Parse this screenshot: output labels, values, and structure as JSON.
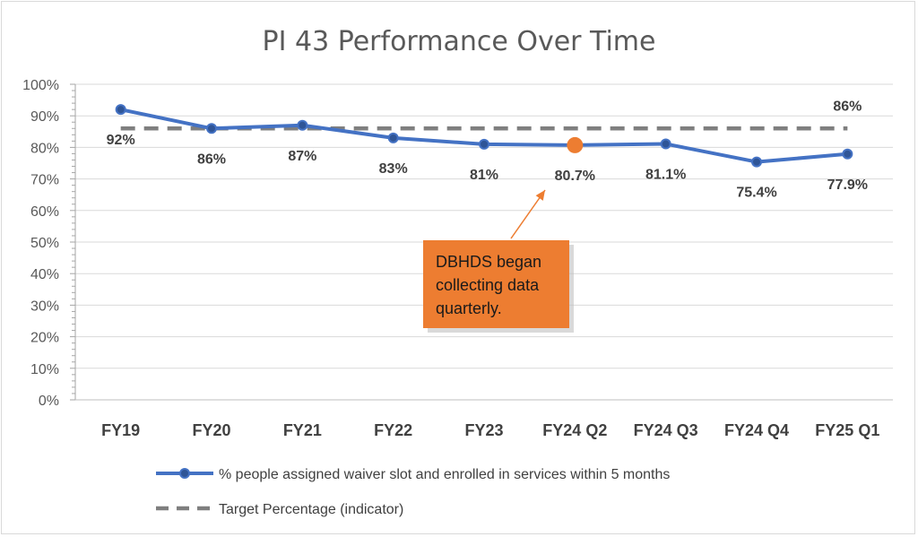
{
  "chart_data": {
    "type": "line",
    "title": "PI 43 Performance Over Time",
    "categories": [
      "FY19",
      "FY20",
      "FY21",
      "FY22",
      "FY23",
      "FY24 Q2",
      "FY24 Q3",
      "FY24 Q4",
      "FY25 Q1"
    ],
    "yticks": [
      "0%",
      "10%",
      "20%",
      "30%",
      "40%",
      "50%",
      "60%",
      "70%",
      "80%",
      "90%",
      "100%"
    ],
    "ylim": [
      0,
      100
    ],
    "grid": true,
    "legend_position": "bottom",
    "series": [
      {
        "name": "% people assigned waiver slot and enrolled in services within 5 months",
        "values": [
          92,
          86,
          87,
          83,
          81,
          80.7,
          81.1,
          75.4,
          77.9
        ],
        "labels": [
          "92%",
          "86%",
          "87%",
          "83%",
          "81%",
          "80.7%",
          "81.1%",
          "75.4%",
          "77.9%"
        ],
        "color": "#4472c4",
        "highlight_index": 5,
        "highlight_color": "#ed7d31"
      },
      {
        "name": "Target Percentage (indicator)",
        "values": [
          86,
          86,
          86,
          86,
          86,
          86,
          86,
          86,
          86
        ],
        "label": "86%",
        "color": "#7f7f7f",
        "style": "dashed"
      }
    ],
    "annotation": {
      "text_lines": [
        "DBHDS began",
        "collecting data",
        "quarterly."
      ],
      "points_to": "FY24 Q2",
      "box_color": "#ed7d31",
      "arrow_color": "#ed7d31"
    }
  }
}
